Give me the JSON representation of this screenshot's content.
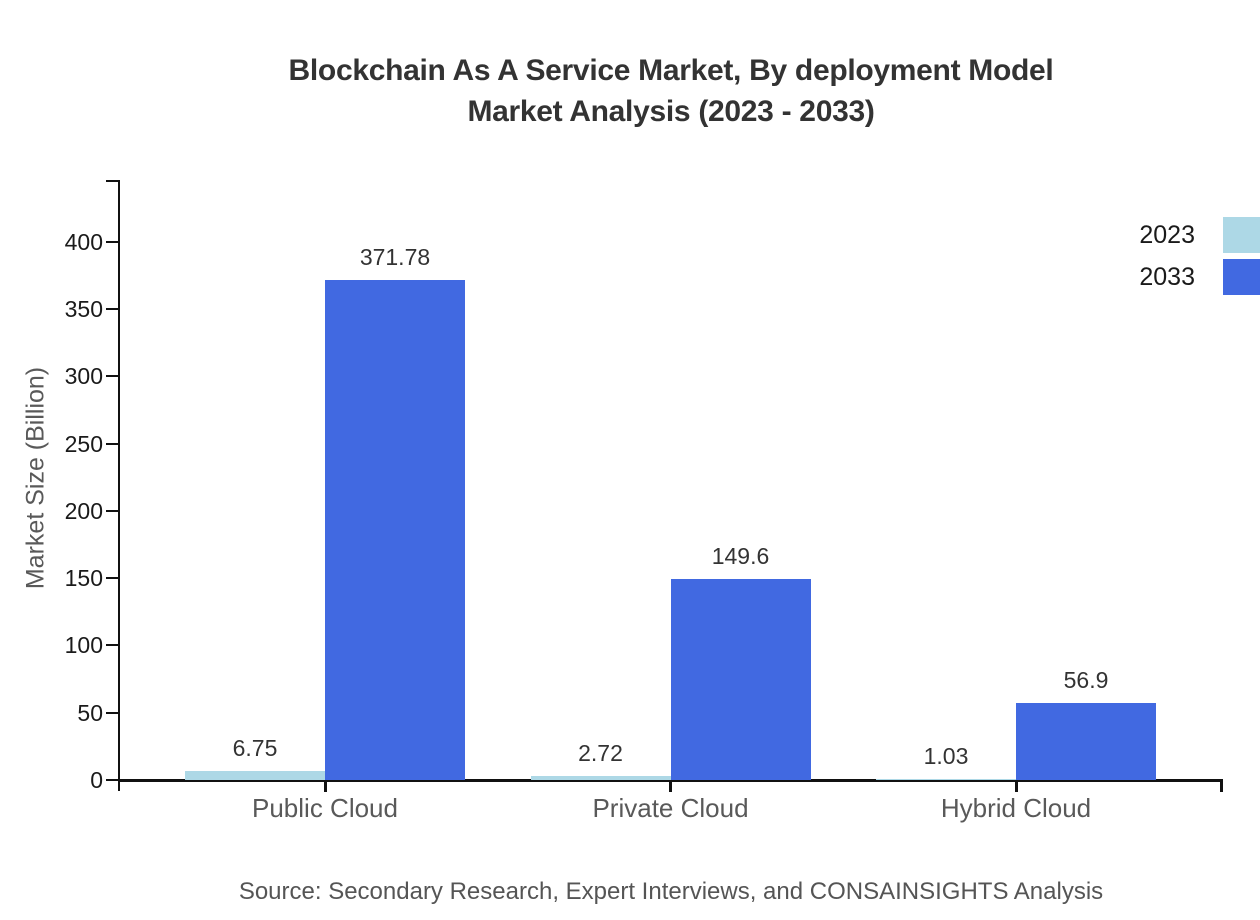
{
  "chart_data": {
    "type": "bar",
    "title": "Blockchain As A Service Market, By deployment Model Market Analysis (2023 - 2033)",
    "title_lines": [
      "Blockchain As A Service Market, By deployment Model",
      "Market Analysis (2023 - 2033)"
    ],
    "xlabel": "",
    "ylabel": "Market Size (Billion)",
    "categories": [
      "Public Cloud",
      "Private Cloud",
      "Hybrid Cloud"
    ],
    "series": [
      {
        "name": "2023",
        "color": "#ADD8E6",
        "values": [
          6.75,
          2.72,
          1.03
        ]
      },
      {
        "name": "2033",
        "color": "#4169E1",
        "values": [
          371.78,
          149.6,
          56.9
        ]
      }
    ],
    "value_labels": [
      "6.75",
      "371.78",
      "2.72",
      "149.6",
      "1.03",
      "56.9"
    ],
    "yticks": [
      0,
      50,
      100,
      150,
      200,
      250,
      300,
      350,
      400
    ],
    "ylim": [
      0,
      445
    ],
    "grid": false,
    "legend_position": "top-right",
    "axis_color": "#111111",
    "source": "Source: Secondary Research, Expert Interviews, and CONSAINSIGHTS Analysis"
  }
}
